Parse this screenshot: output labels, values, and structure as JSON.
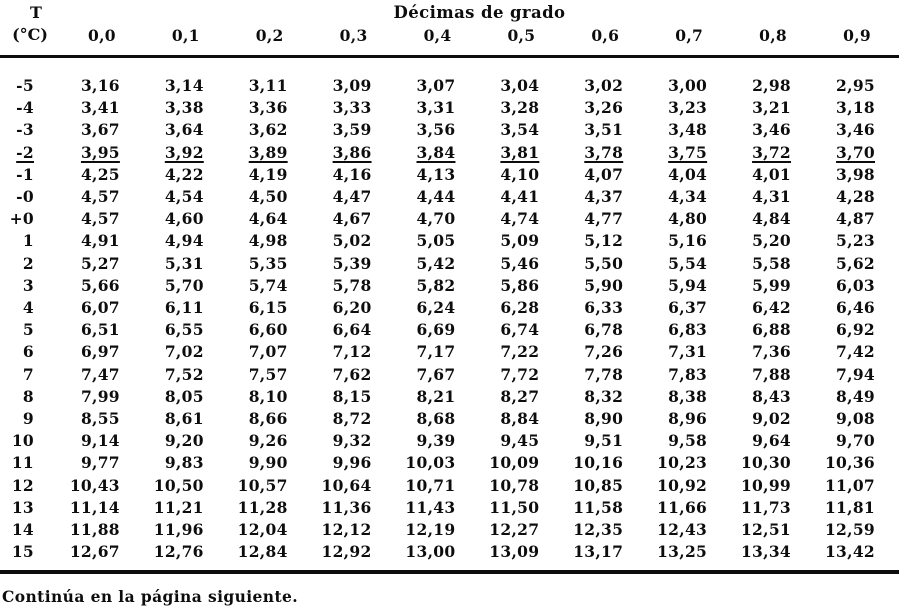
{
  "table": {
    "corner_header_line1": "T",
    "corner_header_line2": "(°C)",
    "span_header": "Décimas de grado",
    "decimal_headers": [
      "0,0",
      "0,1",
      "0,2",
      "0,3",
      "0,4",
      "0,5",
      "0,6",
      "0,7",
      "0,8",
      "0,9"
    ],
    "rows": [
      {
        "t": "-5",
        "values": [
          "3,16",
          "3,14",
          "3,11",
          "3,09",
          "3,07",
          "3,04",
          "3,02",
          "3,00",
          "2,98",
          "2,95"
        ],
        "underlined": false
      },
      {
        "t": "-4",
        "values": [
          "3,41",
          "3,38",
          "3,36",
          "3,33",
          "3,31",
          "3,28",
          "3,26",
          "3,23",
          "3,21",
          "3,18"
        ],
        "underlined": false
      },
      {
        "t": "-3",
        "values": [
          "3,67",
          "3,64",
          "3,62",
          "3,59",
          "3,56",
          "3,54",
          "3,51",
          "3,48",
          "3,46",
          "3,46"
        ],
        "underlined": false
      },
      {
        "t": "-2",
        "values": [
          "3,95",
          "3,92",
          "3,89",
          "3,86",
          "3,84",
          "3,81",
          "3,78",
          "3,75",
          "3,72",
          "3,70"
        ],
        "underlined": true
      },
      {
        "t": "-1",
        "values": [
          "4,25",
          "4,22",
          "4,19",
          "4,16",
          "4,13",
          "4,10",
          "4,07",
          "4,04",
          "4,01",
          "3,98"
        ],
        "underlined": false
      },
      {
        "t": "-0",
        "values": [
          "4,57",
          "4,54",
          "4,50",
          "4,47",
          "4,44",
          "4,41",
          "4,37",
          "4,34",
          "4,31",
          "4,28"
        ],
        "underlined": false
      },
      {
        "t": "+0",
        "values": [
          "4,57",
          "4,60",
          "4,64",
          "4,67",
          "4,70",
          "4,74",
          "4,77",
          "4,80",
          "4,84",
          "4,87"
        ],
        "underlined": false
      },
      {
        "t": "1",
        "values": [
          "4,91",
          "4,94",
          "4,98",
          "5,02",
          "5,05",
          "5,09",
          "5,12",
          "5,16",
          "5,20",
          "5,23"
        ],
        "underlined": false
      },
      {
        "t": "2",
        "values": [
          "5,27",
          "5,31",
          "5,35",
          "5,39",
          "5,42",
          "5,46",
          "5,50",
          "5,54",
          "5,58",
          "5,62"
        ],
        "underlined": false
      },
      {
        "t": "3",
        "values": [
          "5,66",
          "5,70",
          "5,74",
          "5,78",
          "5,82",
          "5,86",
          "5,90",
          "5,94",
          "5,99",
          "6,03"
        ],
        "underlined": false
      },
      {
        "t": "4",
        "values": [
          "6,07",
          "6,11",
          "6,15",
          "6,20",
          "6,24",
          "6,28",
          "6,33",
          "6,37",
          "6,42",
          "6,46"
        ],
        "underlined": false
      },
      {
        "t": "5",
        "values": [
          "6,51",
          "6,55",
          "6,60",
          "6,64",
          "6,69",
          "6,74",
          "6,78",
          "6,83",
          "6,88",
          "6,92"
        ],
        "underlined": false
      },
      {
        "t": "6",
        "values": [
          "6,97",
          "7,02",
          "7,07",
          "7,12",
          "7,17",
          "7,22",
          "7,26",
          "7,31",
          "7,36",
          "7,42"
        ],
        "underlined": false
      },
      {
        "t": "7",
        "values": [
          "7,47",
          "7,52",
          "7,57",
          "7,62",
          "7,67",
          "7,72",
          "7,78",
          "7,83",
          "7,88",
          "7,94"
        ],
        "underlined": false
      },
      {
        "t": "8",
        "values": [
          "7,99",
          "8,05",
          "8,10",
          "8,15",
          "8,21",
          "8,27",
          "8,32",
          "8,38",
          "8,43",
          "8,49"
        ],
        "underlined": false
      },
      {
        "t": "9",
        "values": [
          "8,55",
          "8,61",
          "8,66",
          "8,72",
          "8,68",
          "8,84",
          "8,90",
          "8,96",
          "9,02",
          "9,08"
        ],
        "underlined": false
      },
      {
        "t": "10",
        "values": [
          "9,14",
          "9,20",
          "9,26",
          "9,32",
          "9,39",
          "9,45",
          "9,51",
          "9,58",
          "9,64",
          "9,70"
        ],
        "underlined": false
      },
      {
        "t": "11",
        "values": [
          "9,77",
          "9,83",
          "9,90",
          "9,96",
          "10,03",
          "10,09",
          "10,16",
          "10,23",
          "10,30",
          "10,36"
        ],
        "underlined": false
      },
      {
        "t": "12",
        "values": [
          "10,43",
          "10,50",
          "10,57",
          "10,64",
          "10,71",
          "10,78",
          "10,85",
          "10,92",
          "10,99",
          "11,07"
        ],
        "underlined": false
      },
      {
        "t": "13",
        "values": [
          "11,14",
          "11,21",
          "11,28",
          "11,36",
          "11,43",
          "11,50",
          "11,58",
          "11,66",
          "11,73",
          "11,81"
        ],
        "underlined": false
      },
      {
        "t": "14",
        "values": [
          "11,88",
          "11,96",
          "12,04",
          "12,12",
          "12,19",
          "12,27",
          "12,35",
          "12,43",
          "12,51",
          "12,59"
        ],
        "underlined": false
      },
      {
        "t": "15",
        "values": [
          "12,67",
          "12,76",
          "12,84",
          "12,92",
          "13,00",
          "13,09",
          "13,17",
          "13,25",
          "13,34",
          "13,42"
        ],
        "underlined": false
      }
    ]
  },
  "footer": {
    "text": "Continúa en la página siguiente."
  }
}
